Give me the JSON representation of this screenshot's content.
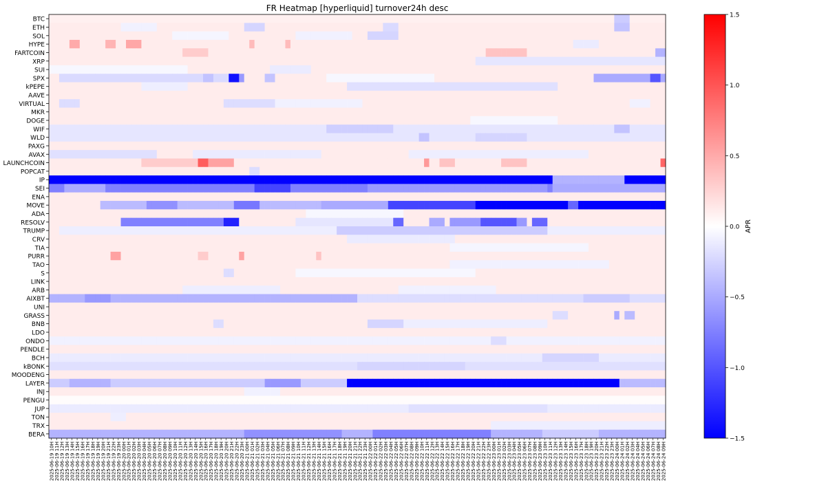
{
  "chart_data": {
    "type": "heatmap",
    "title": "FR Heatmap [hyperliquid] turnover24h desc",
    "colorbar": {
      "label": "APR",
      "vmin": -1.5,
      "vmax": 1.5,
      "ticks": [
        1.5,
        1.0,
        0.5,
        0.0,
        -0.5,
        -1.0,
        -1.5
      ],
      "tick_labels": [
        "1.5",
        "1.0",
        "0.5",
        "0.0",
        "−0.5",
        "−1.0",
        "−1.5"
      ],
      "colormap": "bwr",
      "low_color": "#0000ff",
      "mid_color": "#ffffff",
      "high_color": "#ff0000"
    },
    "rows": [
      "BTC",
      "ETH",
      "SOL",
      "HYPE",
      "FARTCOIN",
      "XRP",
      "SUI",
      "SPX",
      "kPEPE",
      "AAVE",
      "VIRTUAL",
      "MKR",
      "DOGE",
      "WIF",
      "WLD",
      "PAXG",
      "AVAX",
      "LAUNCHCOIN",
      "POPCAT",
      "IP",
      "SEI",
      "ENA",
      "MOVE",
      "ADA",
      "RESOLV",
      "TRUMP",
      "CRV",
      "TIA",
      "PURR",
      "TAO",
      "S",
      "LINK",
      "ARB",
      "AIXBT",
      "UNI",
      "GRASS",
      "BNB",
      "LDO",
      "ONDO",
      "PENDLE",
      "BCH",
      "kBONK",
      "MOODENG",
      "LAYER",
      "INJ",
      "PENGU",
      "JUP",
      "TON",
      "TRX",
      "BERA"
    ],
    "columns": [
      "2025-06-19 10H",
      "2025-06-19 11H",
      "2025-06-19 12H",
      "2025-06-19 13H",
      "2025-06-19 14H",
      "2025-06-19 15H",
      "2025-06-19 16H",
      "2025-06-19 17H",
      "2025-06-19 18H",
      "2025-06-19 19H",
      "2025-06-19 20H",
      "2025-06-19 21H",
      "2025-06-19 22H",
      "2025-06-19 23H",
      "2025-06-20 00H",
      "2025-06-20 01H",
      "2025-06-20 02H",
      "2025-06-20 03H",
      "2025-06-20 04H",
      "2025-06-20 05H",
      "2025-06-20 06H",
      "2025-06-20 07H",
      "2025-06-20 08H",
      "2025-06-20 09H",
      "2025-06-20 10H",
      "2025-06-20 11H",
      "2025-06-20 12H",
      "2025-06-20 13H",
      "2025-06-20 14H",
      "2025-06-20 15H",
      "2025-06-20 16H",
      "2025-06-20 17H",
      "2025-06-20 18H",
      "2025-06-20 19H",
      "2025-06-20 20H",
      "2025-06-20 21H",
      "2025-06-20 22H",
      "2025-06-20 23H",
      "2025-06-21 00H",
      "2025-06-21 01H",
      "2025-06-21 02H",
      "2025-06-21 03H",
      "2025-06-21 04H",
      "2025-06-21 05H",
      "2025-06-21 06H",
      "2025-06-21 07H",
      "2025-06-21 08H",
      "2025-06-21 09H",
      "2025-06-21 10H",
      "2025-06-21 11H",
      "2025-06-21 12H",
      "2025-06-21 13H",
      "2025-06-21 14H",
      "2025-06-21 15H",
      "2025-06-21 16H",
      "2025-06-21 17H",
      "2025-06-21 18H",
      "2025-06-21 19H",
      "2025-06-21 20H",
      "2025-06-21 21H",
      "2025-06-21 22H",
      "2025-06-21 23H",
      "2025-06-22 00H",
      "2025-06-22 01H",
      "2025-06-22 02H",
      "2025-06-22 03H",
      "2025-06-22 04H",
      "2025-06-22 05H",
      "2025-06-22 06H",
      "2025-06-22 07H",
      "2025-06-22 08H",
      "2025-06-22 09H",
      "2025-06-22 10H",
      "2025-06-22 11H",
      "2025-06-22 12H",
      "2025-06-22 13H",
      "2025-06-22 14H",
      "2025-06-22 15H",
      "2025-06-22 16H",
      "2025-06-22 17H",
      "2025-06-22 18H",
      "2025-06-22 19H",
      "2025-06-22 20H",
      "2025-06-22 21H",
      "2025-06-22 22H",
      "2025-06-22 23H",
      "2025-06-23 00H",
      "2025-06-23 01H",
      "2025-06-23 02H",
      "2025-06-23 03H",
      "2025-06-23 04H",
      "2025-06-23 05H",
      "2025-06-23 06H",
      "2025-06-23 07H",
      "2025-06-23 08H",
      "2025-06-23 09H",
      "2025-06-23 10H",
      "2025-06-23 11H",
      "2025-06-23 12H",
      "2025-06-23 13H",
      "2025-06-23 14H",
      "2025-06-23 15H",
      "2025-06-23 16H",
      "2025-06-23 17H",
      "2025-06-23 18H",
      "2025-06-23 19H",
      "2025-06-23 20H",
      "2025-06-23 21H",
      "2025-06-23 22H",
      "2025-06-23 23H",
      "2025-06-24 00H",
      "2025-06-24 01H",
      "2025-06-24 02H",
      "2025-06-24 03H",
      "2025-06-24 04H",
      "2025-06-24 05H",
      "2025-06-24 06H",
      "2025-06-24 07H",
      "2025-06-24 08H",
      "2025-06-24 09H"
    ],
    "default_value": 0.11,
    "segments": [
      {
        "row": "BTC",
        "from": "2025-06-19 10H",
        "to": "2025-06-24 09H",
        "value": 0.09
      },
      {
        "row": "BTC",
        "from": "2025-06-24 00H",
        "to": "2025-06-24 02H",
        "value": -0.3
      },
      {
        "row": "ETH",
        "from": "2025-06-20 00H",
        "to": "2025-06-20 06H",
        "value": -0.08
      },
      {
        "row": "ETH",
        "from": "2025-06-21 00H",
        "to": "2025-06-21 03H",
        "value": -0.25
      },
      {
        "row": "ETH",
        "from": "2025-06-22 03H",
        "to": "2025-06-22 05H",
        "value": -0.22
      },
      {
        "row": "ETH",
        "from": "2025-06-24 00H",
        "to": "2025-06-24 02H",
        "value": -0.35
      },
      {
        "row": "SOL",
        "from": "2025-06-20 10H",
        "to": "2025-06-20 20H",
        "value": -0.06
      },
      {
        "row": "SOL",
        "from": "2025-06-21 10H",
        "to": "2025-06-21 20H",
        "value": -0.08
      },
      {
        "row": "SOL",
        "from": "2025-06-22 00H",
        "to": "2025-06-22 05H",
        "value": -0.25
      },
      {
        "row": "HYPE",
        "from": "2025-06-19 14H",
        "to": "2025-06-19 15H",
        "value": 0.5
      },
      {
        "row": "HYPE",
        "from": "2025-06-19 21H",
        "to": "2025-06-19 22H",
        "value": 0.45
      },
      {
        "row": "HYPE",
        "from": "2025-06-20 01H",
        "to": "2025-06-20 03H",
        "value": 0.52
      },
      {
        "row": "HYPE",
        "from": "2025-06-21 01H",
        "to": "2025-06-21 01H",
        "value": 0.4
      },
      {
        "row": "HYPE",
        "from": "2025-06-21 08H",
        "to": "2025-06-21 08H",
        "value": 0.4
      },
      {
        "row": "HYPE",
        "from": "2025-06-23 16H",
        "to": "2025-06-23 20H",
        "value": -0.12
      },
      {
        "row": "FARTCOIN",
        "from": "2025-06-20 12H",
        "to": "2025-06-20 16H",
        "value": 0.3
      },
      {
        "row": "FARTCOIN",
        "from": "2025-06-22 23H",
        "to": "2025-06-23 06H",
        "value": 0.35
      },
      {
        "row": "FARTCOIN",
        "from": "2025-06-24 08H",
        "to": "2025-06-24 09H",
        "value": -0.45
      },
      {
        "row": "XRP",
        "from": "2025-06-22 21H",
        "to": "2025-06-24 09H",
        "value": -0.15
      },
      {
        "row": "SUI",
        "from": "2025-06-19 10H",
        "to": "2025-06-20 12H",
        "value": -0.05
      },
      {
        "row": "SUI",
        "from": "2025-06-21 05H",
        "to": "2025-06-21 12H",
        "value": -0.12
      },
      {
        "row": "SPX",
        "from": "2025-06-19 12H",
        "to": "2025-06-20 23H",
        "value": -0.22
      },
      {
        "row": "SPX",
        "from": "2025-06-20 16H",
        "to": "2025-06-20 17H",
        "value": -0.35
      },
      {
        "row": "SPX",
        "from": "2025-06-20 21H",
        "to": "2025-06-20 22H",
        "value": -1.4
      },
      {
        "row": "SPX",
        "from": "2025-06-20 23H",
        "to": "2025-06-20 23H",
        "value": -0.6
      },
      {
        "row": "SPX",
        "from": "2025-06-21 04H",
        "to": "2025-06-21 05H",
        "value": -0.35
      },
      {
        "row": "SPX",
        "from": "2025-06-21 16H",
        "to": "2025-06-22 12H",
        "value": -0.05
      },
      {
        "row": "SPX",
        "from": "2025-06-23 20H",
        "to": "2025-06-24 09H",
        "value": -0.5
      },
      {
        "row": "SPX",
        "from": "2025-06-24 07H",
        "to": "2025-06-24 08H",
        "value": -1.0
      },
      {
        "row": "kPEPE",
        "from": "2025-06-20 04H",
        "to": "2025-06-20 12H",
        "value": -0.1
      },
      {
        "row": "kPEPE",
        "from": "2025-06-21 20H",
        "to": "2025-06-23 12H",
        "value": -0.18
      },
      {
        "row": "VIRTUAL",
        "from": "2025-06-19 12H",
        "to": "2025-06-19 15H",
        "value": -0.2
      },
      {
        "row": "VIRTUAL",
        "from": "2025-06-20 20H",
        "to": "2025-06-21 05H",
        "value": -0.2
      },
      {
        "row": "VIRTUAL",
        "from": "2025-06-21 06H",
        "to": "2025-06-21 22H",
        "value": -0.08
      },
      {
        "row": "VIRTUAL",
        "from": "2025-06-24 03H",
        "to": "2025-06-24 06H",
        "value": -0.08
      },
      {
        "row": "DOGE",
        "from": "2025-06-22 20H",
        "to": "2025-06-23 12H",
        "value": -0.05
      },
      {
        "row": "WIF",
        "from": "2025-06-19 10H",
        "to": "2025-06-24 09H",
        "value": -0.15
      },
      {
        "row": "WIF",
        "from": "2025-06-21 16H",
        "to": "2025-06-22 04H",
        "value": -0.28
      },
      {
        "row": "WIF",
        "from": "2025-06-24 00H",
        "to": "2025-06-24 02H",
        "value": -0.35
      },
      {
        "row": "WLD",
        "from": "2025-06-19 10H",
        "to": "2025-06-24 09H",
        "value": -0.15
      },
      {
        "row": "WLD",
        "from": "2025-06-22 10H",
        "to": "2025-06-22 11H",
        "value": -0.35
      },
      {
        "row": "WLD",
        "from": "2025-06-22 21H",
        "to": "2025-06-23 06H",
        "value": -0.25
      },
      {
        "row": "AVAX",
        "from": "2025-06-19 10H",
        "to": "2025-06-20 06H",
        "value": -0.18
      },
      {
        "row": "AVAX",
        "from": "2025-06-20 14H",
        "to": "2025-06-21 14H",
        "value": -0.12
      },
      {
        "row": "AVAX",
        "from": "2025-06-22 08H",
        "to": "2025-06-23 18H",
        "value": -0.1
      },
      {
        "row": "LAUNCHCOIN",
        "from": "2025-06-20 04H",
        "to": "2025-06-20 14H",
        "value": 0.3
      },
      {
        "row": "LAUNCHCOIN",
        "from": "2025-06-20 15H",
        "to": "2025-06-20 16H",
        "value": 0.95
      },
      {
        "row": "LAUNCHCOIN",
        "from": "2025-06-20 17H",
        "to": "2025-06-20 21H",
        "value": 0.55
      },
      {
        "row": "LAUNCHCOIN",
        "from": "2025-06-22 11H",
        "to": "2025-06-22 11H",
        "value": 0.6
      },
      {
        "row": "LAUNCHCOIN",
        "from": "2025-06-22 14H",
        "to": "2025-06-22 16H",
        "value": 0.35
      },
      {
        "row": "LAUNCHCOIN",
        "from": "2025-06-23 02H",
        "to": "2025-06-23 06H",
        "value": 0.35
      },
      {
        "row": "LAUNCHCOIN",
        "from": "2025-06-24 09H",
        "to": "2025-06-24 09H",
        "value": 0.9
      },
      {
        "row": "POPCAT",
        "from": "2025-06-21 01H",
        "to": "2025-06-21 02H",
        "value": -0.2
      },
      {
        "row": "IP",
        "from": "2025-06-19 10H",
        "to": "2025-06-24 09H",
        "value": -1.5
      },
      {
        "row": "IP",
        "from": "2025-06-23 12H",
        "to": "2025-06-24 01H",
        "value": -0.45
      },
      {
        "row": "SEI",
        "from": "2025-06-19 10H",
        "to": "2025-06-24 09H",
        "value": -0.75
      },
      {
        "row": "SEI",
        "from": "2025-06-19 13H",
        "to": "2025-06-19 20H",
        "value": -0.5
      },
      {
        "row": "SEI",
        "from": "2025-06-21 02H",
        "to": "2025-06-21 08H",
        "value": -1.1
      },
      {
        "row": "SEI",
        "from": "2025-06-22 00H",
        "to": "2025-06-23 10H",
        "value": -0.6
      },
      {
        "row": "SEI",
        "from": "2025-06-23 12H",
        "to": "2025-06-24 09H",
        "value": -0.5
      },
      {
        "row": "MOVE",
        "from": "2025-06-19 20H",
        "to": "2025-06-21 14H",
        "value": -0.4
      },
      {
        "row": "MOVE",
        "from": "2025-06-20 05H",
        "to": "2025-06-20 10H",
        "value": -0.65
      },
      {
        "row": "MOVE",
        "from": "2025-06-20 22H",
        "to": "2025-06-21 02H",
        "value": -0.8
      },
      {
        "row": "MOVE",
        "from": "2025-06-21 15H",
        "to": "2025-06-22 03H",
        "value": -0.5
      },
      {
        "row": "MOVE",
        "from": "2025-06-22 04H",
        "to": "2025-06-22 20H",
        "value": -1.1
      },
      {
        "row": "MOVE",
        "from": "2025-06-22 21H",
        "to": "2025-06-23 14H",
        "value": -1.5
      },
      {
        "row": "MOVE",
        "from": "2025-06-23 15H",
        "to": "2025-06-23 16H",
        "value": -0.9
      },
      {
        "row": "MOVE",
        "from": "2025-06-23 17H",
        "to": "2025-06-24 09H",
        "value": -1.5
      },
      {
        "row": "ADA",
        "from": "2025-06-21 12H",
        "to": "2025-06-22 06H",
        "value": -0.05
      },
      {
        "row": "RESOLV",
        "from": "2025-06-20 00H",
        "to": "2025-06-20 22H",
        "value": -0.75
      },
      {
        "row": "RESOLV",
        "from": "2025-06-20 20H",
        "to": "2025-06-20 22H",
        "value": -1.3
      },
      {
        "row": "RESOLV",
        "from": "2025-06-21 10H",
        "to": "2025-06-22 04H",
        "value": -0.15
      },
      {
        "row": "RESOLV",
        "from": "2025-06-22 05H",
        "to": "2025-06-22 06H",
        "value": -0.9
      },
      {
        "row": "RESOLV",
        "from": "2025-06-22 12H",
        "to": "2025-06-22 14H",
        "value": -0.5
      },
      {
        "row": "RESOLV",
        "from": "2025-06-22 16H",
        "to": "2025-06-23 06H",
        "value": -0.6
      },
      {
        "row": "RESOLV",
        "from": "2025-06-22 22H",
        "to": "2025-06-23 04H",
        "value": -1.0
      },
      {
        "row": "RESOLV",
        "from": "2025-06-23 08H",
        "to": "2025-06-23 10H",
        "value": -0.9
      },
      {
        "row": "TRUMP",
        "from": "2025-06-19 12H",
        "to": "2025-06-24 09H",
        "value": -0.1
      },
      {
        "row": "TRUMP",
        "from": "2025-06-21 18H",
        "to": "2025-06-23 10H",
        "value": -0.3
      },
      {
        "row": "CRV",
        "from": "2025-06-21 20H",
        "to": "2025-06-22 16H",
        "value": -0.12
      },
      {
        "row": "TIA",
        "from": "2025-06-22 16H",
        "to": "2025-06-23 18H",
        "value": -0.06
      },
      {
        "row": "PURR",
        "from": "2025-06-19 22H",
        "to": "2025-06-19 23H",
        "value": 0.55
      },
      {
        "row": "PURR",
        "from": "2025-06-20 15H",
        "to": "2025-06-20 16H",
        "value": 0.3
      },
      {
        "row": "PURR",
        "from": "2025-06-20 23H",
        "to": "2025-06-20 23H",
        "value": 0.55
      },
      {
        "row": "PURR",
        "from": "2025-06-21 14H",
        "to": "2025-06-21 14H",
        "value": 0.35
      },
      {
        "row": "TAO",
        "from": "2025-06-22 16H",
        "to": "2025-06-23 22H",
        "value": -0.08
      },
      {
        "row": "S",
        "from": "2025-06-20 20H",
        "to": "2025-06-20 21H",
        "value": -0.2
      },
      {
        "row": "S",
        "from": "2025-06-21 10H",
        "to": "2025-06-22 20H",
        "value": -0.05
      },
      {
        "row": "ARB",
        "from": "2025-06-20 12H",
        "to": "2025-06-21 06H",
        "value": -0.1
      },
      {
        "row": "ARB",
        "from": "2025-06-22 06H",
        "to": "2025-06-23 00H",
        "value": -0.08
      },
      {
        "row": "AIXBT",
        "from": "2025-06-19 10H",
        "to": "2025-06-21 21H",
        "value": -0.45
      },
      {
        "row": "AIXBT",
        "from": "2025-06-19 17H",
        "to": "2025-06-19 21H",
        "value": -0.6
      },
      {
        "row": "AIXBT",
        "from": "2025-06-21 22H",
        "to": "2025-06-24 09H",
        "value": -0.2
      },
      {
        "row": "AIXBT",
        "from": "2025-06-23 18H",
        "to": "2025-06-24 02H",
        "value": -0.3
      },
      {
        "row": "GRASS",
        "from": "2025-06-23 12H",
        "to": "2025-06-23 14H",
        "value": -0.2
      },
      {
        "row": "GRASS",
        "from": "2025-06-24 00H",
        "to": "2025-06-24 00H",
        "value": -0.5
      },
      {
        "row": "GRASS",
        "from": "2025-06-24 02H",
        "to": "2025-06-24 03H",
        "value": -0.4
      },
      {
        "row": "BNB",
        "from": "2025-06-20 18H",
        "to": "2025-06-20 19H",
        "value": -0.2
      },
      {
        "row": "BNB",
        "from": "2025-06-22 00H",
        "to": "2025-06-22 06H",
        "value": -0.25
      },
      {
        "row": "BNB",
        "from": "2025-06-22 07H",
        "to": "2025-06-23 10H",
        "value": -0.1
      },
      {
        "row": "ONDO",
        "from": "2025-06-19 10H",
        "to": "2025-06-24 09H",
        "value": -0.08
      },
      {
        "row": "ONDO",
        "from": "2025-06-23 00H",
        "to": "2025-06-23 02H",
        "value": -0.2
      },
      {
        "row": "BCH",
        "from": "2025-06-19 10H",
        "to": "2025-06-24 09H",
        "value": -0.12
      },
      {
        "row": "BCH",
        "from": "2025-06-23 10H",
        "to": "2025-06-23 20H",
        "value": -0.25
      },
      {
        "row": "kBONK",
        "from": "2025-06-19 10H",
        "to": "2025-06-24 09H",
        "value": -0.18
      },
      {
        "row": "kBONK",
        "from": "2025-06-21 22H",
        "to": "2025-06-22 18H",
        "value": -0.25
      },
      {
        "row": "LAYER",
        "from": "2025-06-19 10H",
        "to": "2025-06-21 19H",
        "value": -0.3
      },
      {
        "row": "LAYER",
        "from": "2025-06-19 14H",
        "to": "2025-06-19 21H",
        "value": -0.45
      },
      {
        "row": "LAYER",
        "from": "2025-06-21 04H",
        "to": "2025-06-21 10H",
        "value": -0.6
      },
      {
        "row": "LAYER",
        "from": "2025-06-21 20H",
        "to": "2025-06-24 00H",
        "value": -1.5
      },
      {
        "row": "LAYER",
        "from": "2025-06-24 01H",
        "to": "2025-06-24 09H",
        "value": -0.4
      },
      {
        "row": "INJ",
        "from": "2025-06-21 00H",
        "to": "2025-06-21 06H",
        "value": -0.08
      },
      {
        "row": "PENGU",
        "from": "2025-06-19 10H",
        "to": "2025-06-24 09H",
        "value": 0.02
      },
      {
        "row": "JUP",
        "from": "2025-06-19 10H",
        "to": "2025-06-24 09H",
        "value": -0.12
      },
      {
        "row": "JUP",
        "from": "2025-06-22 08H",
        "to": "2025-06-23 10H",
        "value": -0.18
      },
      {
        "row": "TON",
        "from": "2025-06-19 22H",
        "to": "2025-06-20 00H",
        "value": -0.1
      },
      {
        "row": "TRX",
        "from": "2025-06-23 00H",
        "to": "2025-06-24 09H",
        "value": -0.1
      },
      {
        "row": "BERA",
        "from": "2025-06-19 10H",
        "to": "2025-06-24 09H",
        "value": -0.45
      },
      {
        "row": "BERA",
        "from": "2025-06-21 00H",
        "to": "2025-06-21 18H",
        "value": -0.65
      },
      {
        "row": "BERA",
        "from": "2025-06-22 01H",
        "to": "2025-06-22 23H",
        "value": -0.75
      },
      {
        "row": "BERA",
        "from": "2025-06-23 10H",
        "to": "2025-06-23 20H",
        "value": -0.3
      }
    ]
  }
}
